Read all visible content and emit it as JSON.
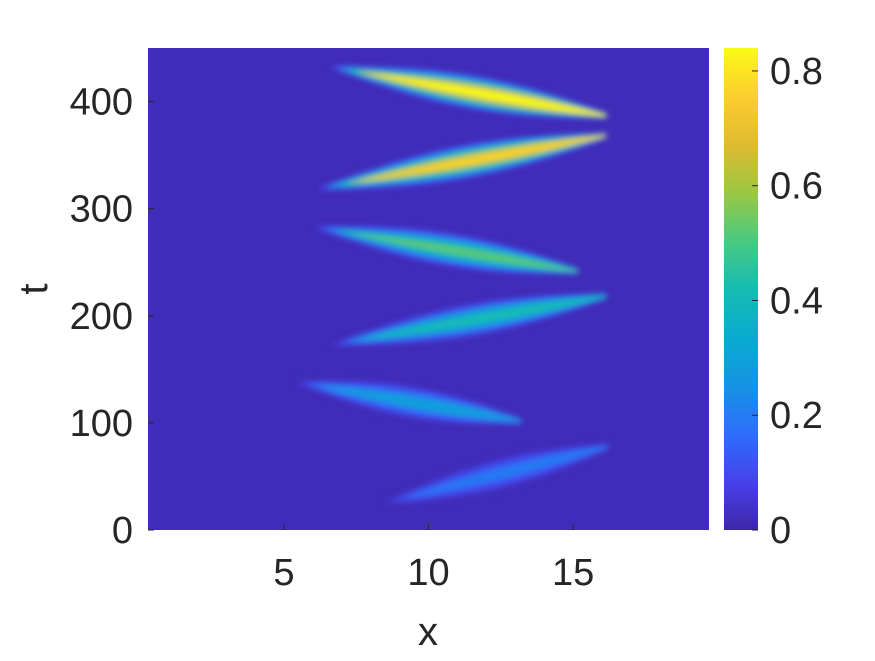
{
  "chart_data": {
    "type": "heatmap",
    "title": "",
    "xlabel": "x",
    "ylabel": "t",
    "xlim": [
      0.3,
      19.7
    ],
    "ylim": [
      0,
      450
    ],
    "x_ticks": [
      5,
      10,
      15
    ],
    "x_tick_labels": [
      "5",
      "10",
      "15"
    ],
    "y_ticks": [
      0,
      100,
      200,
      300,
      400
    ],
    "y_tick_labels": [
      "0",
      "100",
      "200",
      "300",
      "400"
    ],
    "colorbar": {
      "colormap": "parula",
      "clim": [
        0,
        0.84
      ],
      "ticks": [
        0,
        0.2,
        0.4,
        0.6,
        0.8
      ],
      "tick_labels": [
        "0",
        "0.2",
        "0.4",
        "0.6",
        "0.8"
      ]
    },
    "background_value": 0.02,
    "colors": {
      "low": "#3e26a8",
      "high": "#f9fb15"
    },
    "bands": [
      {
        "t_start": 15,
        "x_start": 7.0,
        "t_end": 80,
        "x_end": 16.5,
        "peak": 0.2
      },
      {
        "t_start": 145,
        "x_start": 4.0,
        "t_end": 100,
        "x_end": 13.5,
        "peak": 0.3
      },
      {
        "t_start": 165,
        "x_start": 5.0,
        "t_end": 220,
        "x_end": 16.5,
        "peak": 0.42
      },
      {
        "t_start": 290,
        "x_start": 4.5,
        "t_end": 240,
        "x_end": 15.5,
        "peak": 0.52
      },
      {
        "t_start": 310,
        "x_start": 4.5,
        "t_end": 370,
        "x_end": 16.5,
        "peak": 0.76
      },
      {
        "t_start": 440,
        "x_start": 5.0,
        "t_end": 385,
        "x_end": 16.5,
        "peak": 0.84
      }
    ]
  }
}
